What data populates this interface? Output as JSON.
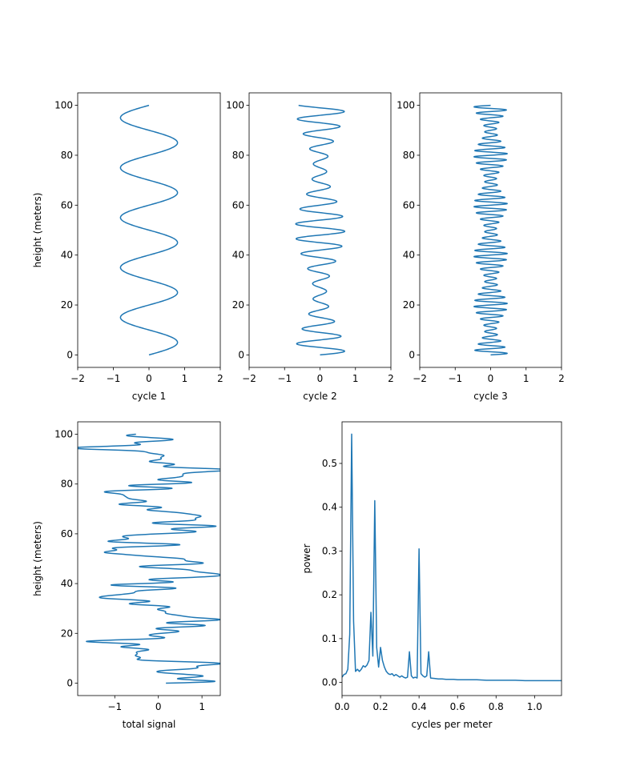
{
  "figure": {
    "line_color": "#1f77b4",
    "background": "#ffffff"
  },
  "chart_data": [
    {
      "id": "cycle1",
      "type": "line",
      "xlabel": "cycle 1",
      "ylabel": "height (meters)",
      "xlim": [
        -2,
        2
      ],
      "ylim": [
        -5,
        105
      ],
      "xticks": [
        -2,
        -1,
        0,
        1,
        2
      ],
      "yticks": [
        0,
        20,
        40,
        60,
        80,
        100
      ],
      "series": [
        {
          "generator": "sine",
          "components": [
            {
              "amplitude": 0.8,
              "period": 20
            }
          ],
          "y_range": [
            0,
            100
          ],
          "note_points": 400
        }
      ]
    },
    {
      "id": "cycle2",
      "type": "line",
      "xlabel": "cycle 2",
      "ylabel": "",
      "xlim": [
        -2,
        2
      ],
      "ylim": [
        -5,
        105
      ],
      "xticks": [
        -2,
        -1,
        0,
        1,
        2
      ],
      "yticks": [
        0,
        20,
        40,
        60,
        80,
        100
      ],
      "series": [
        {
          "generator": "beat",
          "components": [
            {
              "amplitude": 0.7,
              "period": 6
            }
          ],
          "envelope": {
            "min": 0.25,
            "max": 0.95,
            "period": 50
          },
          "y_range": [
            0,
            100
          ]
        }
      ]
    },
    {
      "id": "cycle3",
      "type": "line",
      "xlabel": "cycle 3",
      "ylabel": "",
      "xlim": [
        -2,
        2
      ],
      "ylim": [
        -5,
        105
      ],
      "xticks": [
        -2,
        -1,
        0,
        1,
        2
      ],
      "yticks": [
        0,
        20,
        40,
        60,
        80,
        100
      ],
      "series": [
        {
          "generator": "beat",
          "components": [
            {
              "amplitude": 0.45,
              "period": 2.5
            }
          ],
          "envelope": {
            "min": 0.35,
            "max": 1.0,
            "period": 20
          },
          "y_range": [
            0,
            100
          ]
        }
      ]
    },
    {
      "id": "total",
      "type": "line",
      "xlabel": "total signal",
      "ylabel": "height (meters)",
      "xlim": [
        -1.85,
        1.42
      ],
      "ylim": [
        -5,
        105
      ],
      "xticks": [
        -1,
        0,
        1
      ],
      "yticks": [
        0,
        20,
        40,
        60,
        80,
        100
      ],
      "series": [
        {
          "generator": "sum_of_cycles",
          "y_range": [
            0,
            100
          ]
        }
      ]
    },
    {
      "id": "power",
      "type": "line",
      "xlabel": "cycles per meter",
      "ylabel": "power",
      "xlim": [
        0,
        1.14
      ],
      "ylim": [
        -0.03,
        0.595
      ],
      "xticks": [
        0.0,
        0.2,
        0.4,
        0.6,
        0.8,
        1.0
      ],
      "xtick_labels": [
        "0.0",
        "0.2",
        "0.4",
        "0.6",
        "0.8",
        "1.0"
      ],
      "yticks": [
        0.0,
        0.1,
        0.2,
        0.3,
        0.4,
        0.5
      ],
      "ytick_labels": [
        "0.0",
        "0.1",
        "0.2",
        "0.3",
        "0.4",
        "0.5"
      ],
      "series": [
        {
          "x": [
            0.0,
            0.01,
            0.02,
            0.03,
            0.04,
            0.05,
            0.06,
            0.07,
            0.08,
            0.09,
            0.1,
            0.11,
            0.12,
            0.13,
            0.14,
            0.15,
            0.16,
            0.17,
            0.18,
            0.19,
            0.2,
            0.21,
            0.22,
            0.23,
            0.24,
            0.25,
            0.26,
            0.27,
            0.28,
            0.29,
            0.3,
            0.31,
            0.32,
            0.33,
            0.34,
            0.35,
            0.36,
            0.37,
            0.38,
            0.39,
            0.4,
            0.41,
            0.42,
            0.43,
            0.44,
            0.45,
            0.46,
            0.48,
            0.5,
            0.52,
            0.54,
            0.56,
            0.58,
            0.6,
            0.65,
            0.7,
            0.75,
            0.8,
            0.85,
            0.9,
            0.95,
            1.0,
            1.05,
            1.1,
            1.14
          ],
          "y": [
            0.012,
            0.018,
            0.02,
            0.03,
            0.11,
            0.567,
            0.14,
            0.025,
            0.03,
            0.025,
            0.03,
            0.038,
            0.035,
            0.04,
            0.05,
            0.16,
            0.06,
            0.415,
            0.08,
            0.035,
            0.08,
            0.05,
            0.035,
            0.025,
            0.02,
            0.018,
            0.02,
            0.015,
            0.018,
            0.015,
            0.012,
            0.015,
            0.012,
            0.01,
            0.012,
            0.07,
            0.015,
            0.01,
            0.012,
            0.01,
            0.305,
            0.02,
            0.015,
            0.012,
            0.015,
            0.07,
            0.01,
            0.009,
            0.008,
            0.008,
            0.007,
            0.007,
            0.007,
            0.006,
            0.006,
            0.006,
            0.005,
            0.005,
            0.005,
            0.005,
            0.004,
            0.004,
            0.004,
            0.004,
            0.004
          ]
        }
      ]
    }
  ]
}
